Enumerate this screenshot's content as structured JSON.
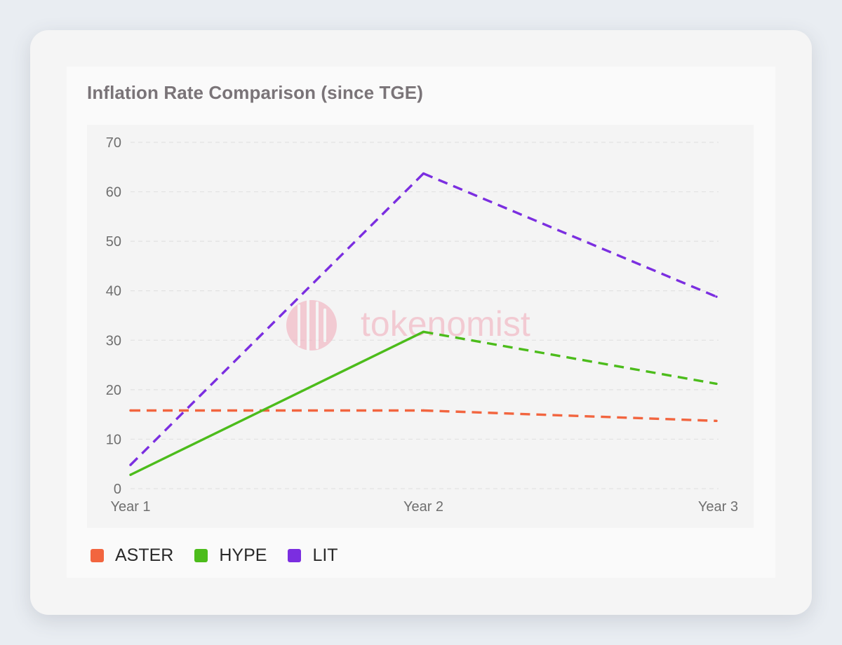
{
  "colors": {
    "ASTER": "#f2653f",
    "HYPE": "#4cbc1b",
    "LIT": "#7b2ee0",
    "watermark": "#f1a8b8"
  },
  "watermark_text": "tokenomist",
  "chart_data": {
    "type": "line",
    "title": "Inflation Rate Comparison (since TGE)",
    "xlabel": "",
    "ylabel": "",
    "categories": [
      "Year 1",
      "Year 2",
      "Year 3"
    ],
    "ylim": [
      0,
      70
    ],
    "yticks": [
      0,
      10,
      20,
      30,
      40,
      50,
      60,
      70
    ],
    "grid": true,
    "legend_position": "bottom-left",
    "series": [
      {
        "name": "ASTER",
        "values": [
          15.8,
          15.8,
          13.7
        ],
        "dash": [
          "dashed",
          "dashed"
        ]
      },
      {
        "name": "HYPE",
        "values": [
          2.8,
          31.7,
          21.2
        ],
        "dash": [
          "solid",
          "dashed"
        ]
      },
      {
        "name": "LIT",
        "values": [
          4.8,
          63.7,
          38.8
        ],
        "dash": [
          "dashed",
          "dashed"
        ]
      }
    ]
  }
}
